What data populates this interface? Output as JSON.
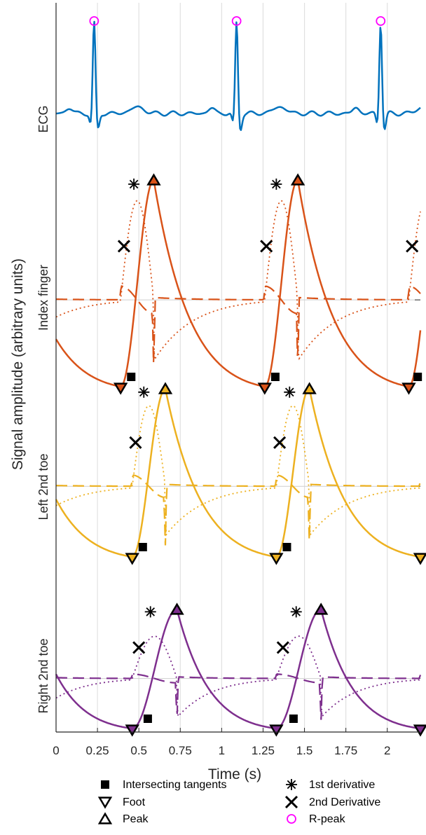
{
  "chart_data": {
    "type": "line",
    "xlabel": "Time (s)",
    "ylabel": "Signal amplitude (arbitrary units)",
    "xlim": [
      0,
      2.2
    ],
    "xticks": [
      0,
      0.25,
      0.5,
      0.75,
      1,
      1.25,
      1.5,
      1.75,
      2
    ],
    "xtick_labels": [
      "0",
      "0.25",
      "0.5",
      "0.75",
      "1",
      "1.25",
      "1.5",
      "1.75",
      "2"
    ],
    "grid": "vertical",
    "panels": [
      {
        "label": "ECG",
        "color": "#0072BD",
        "r_peaks": [
          0.23,
          1.09,
          1.96
        ]
      },
      {
        "label": "Index finger",
        "color": "#D95319",
        "feet": [
          0.39,
          1.26,
          2.13
        ],
        "peaks": [
          0.59,
          1.46
        ],
        "first_derivative": [
          0.47,
          1.33
        ],
        "second_derivative": [
          0.41,
          1.27,
          2.15
        ],
        "intersecting_tangents": [
          0.42,
          1.29,
          2.15
        ]
      },
      {
        "label": "Left 2nd toe",
        "color": "#EDB120",
        "feet": [
          0.46,
          1.33,
          2.2
        ],
        "peaks": [
          0.66,
          1.53
        ],
        "first_derivative": [
          0.53,
          1.41
        ],
        "second_derivative": [
          0.48,
          1.35
        ],
        "intersecting_tangents": [
          0.49,
          1.36
        ]
      },
      {
        "label": "Right 2nd toe",
        "color": "#7E2F8E",
        "feet": [
          0.46,
          1.33,
          2.2
        ],
        "peaks": [
          0.73,
          1.6
        ],
        "first_derivative": [
          0.57,
          1.45
        ],
        "second_derivative": [
          0.5,
          1.37
        ],
        "intersecting_tangents": [
          0.52,
          1.4
        ]
      }
    ],
    "legend": {
      "placement": "bottom",
      "entries": [
        "Intersecting tangents",
        "Foot",
        "Peak",
        "1st derivative",
        "2nd Derivative",
        "R-peak"
      ],
      "marker_names": [
        "filled-square",
        "down-triangle",
        "up-triangle",
        "asterisk",
        "cross",
        "circle"
      ],
      "rpeak_color": "#FF00FF"
    }
  }
}
